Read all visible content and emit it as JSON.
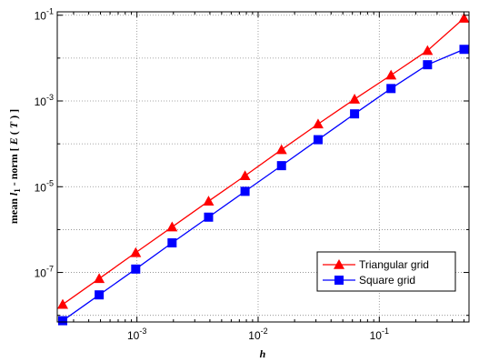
{
  "chart_data": {
    "type": "line",
    "title": "",
    "xlabel": "h",
    "ylabel": {
      "prefix": "mean ",
      "l": "l",
      "sub": "1",
      "mid": " - norm [ ",
      "E": "E",
      "paren_open": " ( ",
      "T": "T",
      "suffix": " ) ]"
    },
    "x_scale": "log",
    "y_scale": "log",
    "xlim": [
      0.00022,
      0.55
    ],
    "ylim": [
      7e-09,
      0.12
    ],
    "grid": true,
    "legend_position": "bottom-right",
    "x_ticks": [
      {
        "value": 0.001,
        "base": "10",
        "exp": "-3"
      },
      {
        "value": 0.01,
        "base": "10",
        "exp": "-2"
      },
      {
        "value": 0.1,
        "base": "10",
        "exp": "-1"
      }
    ],
    "y_ticks": [
      {
        "value": 1e-07,
        "base": "10",
        "exp": "-7"
      },
      {
        "value": 1e-05,
        "base": "10",
        "exp": "-5"
      },
      {
        "value": 0.001,
        "base": "10",
        "exp": "-3"
      },
      {
        "value": 0.1,
        "base": "10",
        "exp": "-1"
      }
    ],
    "x": [
      0.000244,
      0.000488,
      0.000977,
      0.00195,
      0.0039,
      0.0078,
      0.0156,
      0.03125,
      0.0625,
      0.125,
      0.25,
      0.5
    ],
    "series": [
      {
        "name": "Triangular grid",
        "color": "#ff0000",
        "marker": "triangle",
        "values": [
          1.8e-08,
          7.2e-08,
          2.9e-07,
          1.15e-06,
          4.6e-06,
          1.8e-05,
          7.3e-05,
          0.00029,
          0.0011,
          0.004,
          0.015,
          0.085
        ]
      },
      {
        "name": "Square grid",
        "color": "#0000ff",
        "marker": "square",
        "values": [
          7.5e-09,
          3e-08,
          1.2e-07,
          4.9e-07,
          1.95e-06,
          7.8e-06,
          3.1e-05,
          0.000125,
          0.0005,
          0.00195,
          0.007,
          0.016
        ]
      }
    ]
  }
}
